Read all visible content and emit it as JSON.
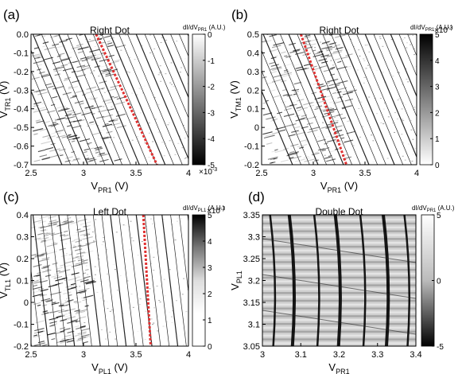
{
  "chart_data": [
    {
      "type": "heatmap",
      "panel_label": "(a)",
      "title": "Right Dot",
      "xlabel_main": "V",
      "xlabel_sub": "PR1",
      "xlabel_unit": " (V)",
      "ylabel_main": "V",
      "ylabel_sub": "TR1",
      "ylabel_unit": " (V)",
      "xlim": [
        2.5,
        4.0
      ],
      "ylim": [
        -0.7,
        0.0
      ],
      "xticks": [
        "2.5",
        "3",
        "3.5",
        "4"
      ],
      "xtick_values": [
        2.5,
        3.0,
        3.5,
        4.0
      ],
      "yticks": [
        "0.0",
        "-0.1",
        "-0.2",
        "-0.3",
        "-0.4",
        "-0.5",
        "-0.6",
        "-0.7"
      ],
      "ytick_values": [
        0.0,
        -0.1,
        -0.2,
        -0.3,
        -0.4,
        -0.5,
        -0.6,
        -0.7
      ],
      "colorbar": {
        "label_main": "dI/dV",
        "label_sub": "PR1",
        "label_unit": " (A.U.)",
        "ticks": [
          "0",
          "-1",
          "-2",
          "-3",
          "-4",
          "-5"
        ],
        "tick_values": [
          0,
          -1,
          -2,
          -3,
          -4,
          -5
        ],
        "range": [
          -5,
          0
        ],
        "exponent": "×10",
        "exponent_power": "-3",
        "gradient": [
          "#000000",
          "#ffffff"
        ]
      },
      "red_line": {
        "color": "#e03030",
        "points": [
          [
            3.12,
            0.0
          ],
          [
            3.7,
            -0.7
          ]
        ]
      }
    },
    {
      "type": "heatmap",
      "panel_label": "(b)",
      "title": "Right Dot",
      "xlabel_main": "V",
      "xlabel_sub": "PR1",
      "xlabel_unit": " (V)",
      "ylabel_main": "V",
      "ylabel_sub": "TM1",
      "ylabel_unit": " (V)",
      "xlim": [
        2.5,
        4.0
      ],
      "ylim": [
        -0.2,
        0.5
      ],
      "xticks": [
        "2.5",
        "3",
        "3.5",
        "4"
      ],
      "xtick_values": [
        2.5,
        3.0,
        3.5,
        4.0
      ],
      "yticks": [
        "0.5",
        "0.4",
        "0.3",
        "0.2",
        "0.1",
        "0",
        "-0.1",
        "-0.2"
      ],
      "ytick_values": [
        0.5,
        0.4,
        0.3,
        0.2,
        0.1,
        0.0,
        -0.1,
        -0.2
      ],
      "colorbar": {
        "label_main": "dI/dV",
        "label_sub": "PR1",
        "label_unit": " (A.U.)",
        "ticks": [
          "5",
          "4",
          "3",
          "2",
          "1",
          "0"
        ],
        "tick_values": [
          5,
          4,
          3,
          2,
          1,
          0
        ],
        "range": [
          0,
          5
        ],
        "exponent": "×10",
        "exponent_power": "-3",
        "gradient": [
          "#ffffff",
          "#000000"
        ]
      },
      "red_line": {
        "color": "#e03030",
        "points": [
          [
            2.88,
            0.5
          ],
          [
            3.32,
            -0.2
          ]
        ]
      }
    },
    {
      "type": "heatmap",
      "panel_label": "(c)",
      "title": "Left Dot",
      "xlabel_main": "V",
      "xlabel_sub": "PL1",
      "xlabel_unit": " (V)",
      "ylabel_main": "V",
      "ylabel_sub": "TL1",
      "ylabel_unit": " (V)",
      "xlim": [
        2.5,
        4.0
      ],
      "ylim": [
        -0.2,
        0.4
      ],
      "xticks": [
        "2.5",
        "3",
        "3.5",
        "4"
      ],
      "xtick_values": [
        2.5,
        3.0,
        3.5,
        4.0
      ],
      "yticks": [
        "0.4",
        "0.3",
        "0.2",
        "0.1",
        "0",
        "-0.1",
        "-0.2"
      ],
      "ytick_values": [
        0.4,
        0.3,
        0.2,
        0.1,
        0.0,
        -0.1,
        -0.2
      ],
      "colorbar": {
        "label_main": "dI/dV",
        "label_sub": "PL1",
        "label_unit": " (A.U.)",
        "ticks": [
          "5",
          "4",
          "3",
          "2",
          "1",
          "0"
        ],
        "tick_values": [
          5,
          4,
          3,
          2,
          1,
          0
        ],
        "range": [
          0,
          5
        ],
        "exponent": "×10",
        "exponent_power": "-3",
        "gradient": [
          "#ffffff",
          "#ffffff",
          "#dddddd",
          "#777777",
          "#000000"
        ]
      },
      "red_line": {
        "color": "#e03030",
        "points": [
          [
            3.57,
            0.4
          ],
          [
            3.64,
            -0.2
          ]
        ]
      }
    },
    {
      "type": "heatmap",
      "panel_label": "(d)",
      "title": "Double Dot",
      "xlabel_main": "V",
      "xlabel_sub": "PR1",
      "xlabel_unit": "",
      "ylabel_main": "V",
      "ylabel_sub": "PL1",
      "ylabel_unit": "",
      "xlim": [
        3.0,
        3.4
      ],
      "ylim": [
        3.05,
        3.35
      ],
      "xticks": [
        "3",
        "3.1",
        "3.2",
        "3.3",
        "3.4"
      ],
      "xtick_values": [
        3.0,
        3.1,
        3.2,
        3.3,
        3.4
      ],
      "yticks": [
        "3.35",
        "3.3",
        "3.25",
        "3.2",
        "3.15",
        "3.1",
        "3.05"
      ],
      "ytick_values": [
        3.35,
        3.3,
        3.25,
        3.2,
        3.15,
        3.1,
        3.05
      ],
      "colorbar": {
        "label_main": "dI/dV",
        "label_sub": "PR1",
        "label_unit": " (A.U.)",
        "ticks": [
          "5",
          "0",
          "-5"
        ],
        "tick_values": [
          5,
          0,
          -5
        ],
        "range": [
          -5,
          5
        ],
        "exponent": "",
        "exponent_power": "",
        "gradient": [
          "#000000",
          "#bbbbbb",
          "#ffffff"
        ]
      },
      "red_line": null
    }
  ]
}
